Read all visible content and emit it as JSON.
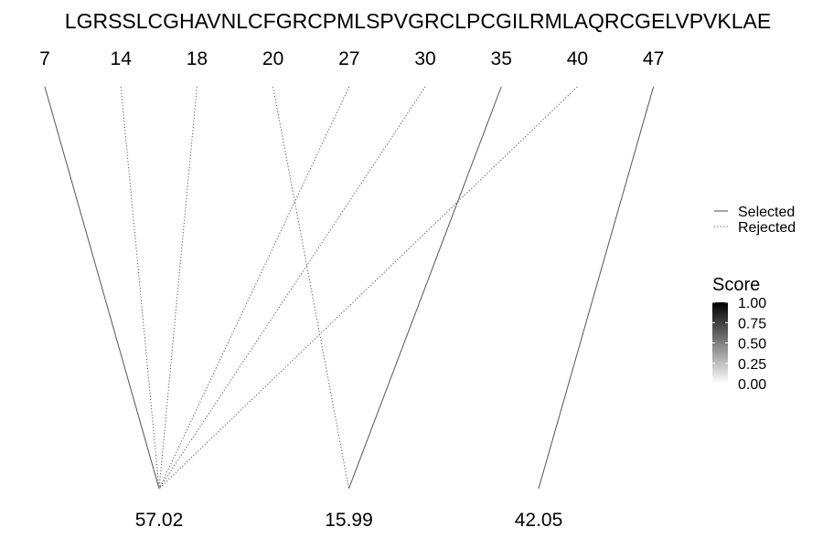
{
  "sequence": "LGRSSLCGHAVNLCFGRCPMLSPVGRCLPCGILRMLAQRCGELVPVKLAE",
  "positions": [
    "7",
    "14",
    "18",
    "20",
    "27",
    "30",
    "35",
    "40",
    "47"
  ],
  "scores": [
    "57.02",
    "15.99",
    "42.05"
  ],
  "links": [
    {
      "from": "7",
      "to": "57.02",
      "status": "Selected"
    },
    {
      "from": "14",
      "to": "57.02",
      "status": "Rejected"
    },
    {
      "from": "18",
      "to": "57.02",
      "status": "Rejected"
    },
    {
      "from": "20",
      "to": "15.99",
      "status": "Rejected"
    },
    {
      "from": "27",
      "to": "57.02",
      "status": "Rejected"
    },
    {
      "from": "30",
      "to": "57.02",
      "status": "Rejected"
    },
    {
      "from": "35",
      "to": "15.99",
      "status": "Selected"
    },
    {
      "from": "40",
      "to": "57.02",
      "status": "Rejected"
    },
    {
      "from": "47",
      "to": "42.05",
      "status": "Selected"
    }
  ],
  "legend": {
    "linetype_items": [
      {
        "label": "Selected",
        "style": "solid"
      },
      {
        "label": "Rejected",
        "style": "dotted"
      }
    ],
    "score_title": "Score",
    "score_ticks": [
      "1.00",
      "0.75",
      "0.50",
      "0.25",
      "0.00"
    ],
    "gradient_colors": [
      "#000000",
      "#ffffff"
    ]
  },
  "colors": {
    "line": "#555555",
    "text": "#000000",
    "background": "#ffffff"
  }
}
